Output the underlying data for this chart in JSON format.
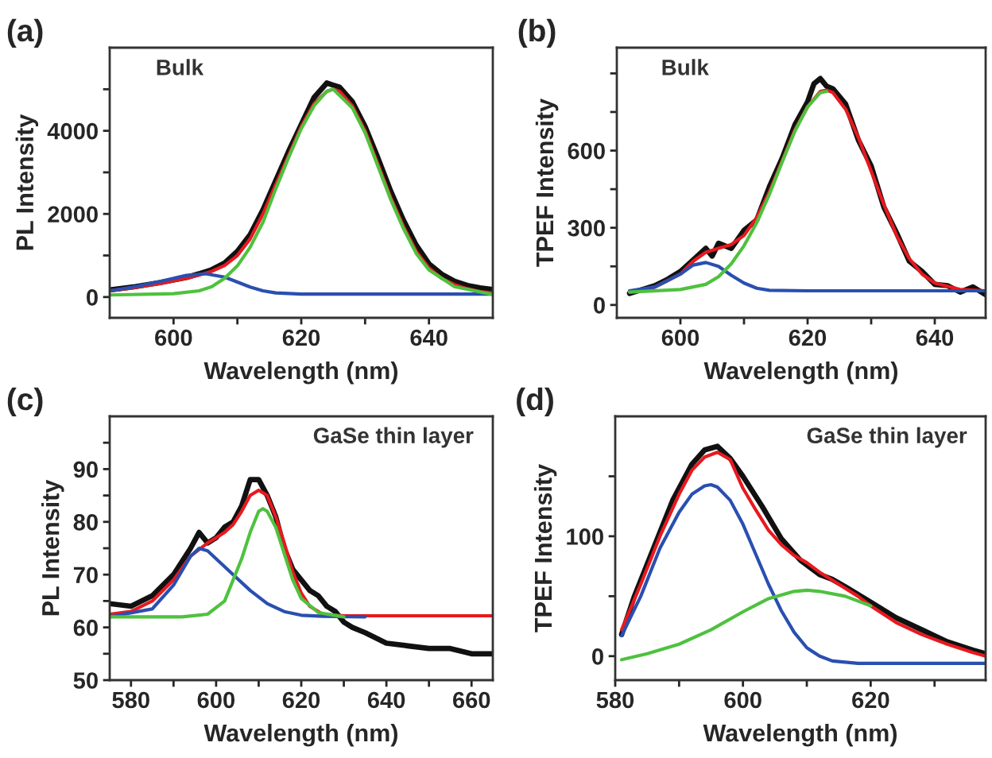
{
  "chart_data": [
    {
      "type": "line",
      "title": "(a)",
      "annotations": [
        "Bulk"
      ],
      "xlabel": "Wavelength (nm)",
      "ylabel": "PL Intensity",
      "xlim": [
        590,
        650
      ],
      "ylim": [
        -500,
        6000
      ],
      "xticks": [
        600,
        {
          "value": 610,
          "label": null
        },
        620,
        {
          "value": 630,
          "label": null
        },
        640
      ],
      "yticks": [
        0,
        {
          "value": 1000,
          "label": null
        },
        2000,
        {
          "value": 3000,
          "label": null
        },
        4000,
        {
          "value": 5000,
          "label": null
        }
      ],
      "series": [
        {
          "color": "#111111",
          "x": [
            590,
            594,
            598,
            602,
            604,
            606,
            608,
            610,
            612,
            614,
            616,
            618,
            620,
            622,
            624,
            625,
            626,
            628,
            630,
            632,
            634,
            636,
            638,
            640,
            642,
            644,
            646,
            648,
            650
          ],
          "values": [
            170,
            250,
            350,
            470,
            560,
            660,
            820,
            1100,
            1500,
            2100,
            2800,
            3500,
            4150,
            4800,
            5150,
            5100,
            5050,
            4700,
            4100,
            3350,
            2550,
            1850,
            1250,
            800,
            550,
            380,
            280,
            220,
            180
          ]
        },
        {
          "color": "#e8191f",
          "x": [
            590,
            594,
            598,
            602,
            604,
            606,
            608,
            610,
            612,
            614,
            616,
            618,
            620,
            622,
            624,
            625,
            626,
            628,
            630,
            632,
            634,
            636,
            638,
            640,
            642,
            644,
            646,
            648,
            650
          ],
          "values": [
            150,
            230,
            330,
            450,
            530,
            620,
            760,
            1000,
            1400,
            2000,
            2700,
            3400,
            4100,
            4650,
            4950,
            5000,
            4950,
            4600,
            4000,
            3200,
            2400,
            1700,
            1100,
            700,
            450,
            300,
            200,
            130,
            100
          ]
        },
        {
          "color": "#2a4fb0",
          "x": [
            590,
            594,
            598,
            602,
            605,
            608,
            610,
            612,
            614,
            616,
            620,
            650
          ],
          "values": [
            150,
            250,
            380,
            520,
            560,
            480,
            360,
            240,
            150,
            100,
            70,
            70
          ]
        },
        {
          "color": "#4fc13f",
          "x": [
            590,
            600,
            604,
            606,
            608,
            610,
            612,
            614,
            616,
            618,
            620,
            622,
            624,
            625,
            628,
            630,
            632,
            634,
            636,
            638,
            640,
            644,
            650
          ],
          "values": [
            50,
            80,
            150,
            250,
            450,
            750,
            1200,
            1800,
            2600,
            3350,
            4050,
            4600,
            4950,
            5000,
            4550,
            3950,
            3150,
            2350,
            1650,
            1050,
            650,
            250,
            60
          ]
        }
      ]
    },
    {
      "type": "line",
      "title": "(b)",
      "annotations": [
        "Bulk"
      ],
      "xlabel": "Wavelength (nm)",
      "ylabel": "TPEF Intensity",
      "xlim": [
        590,
        648
      ],
      "ylim": [
        -50,
        1000
      ],
      "xticks": [
        600,
        {
          "value": 610,
          "label": null
        },
        620,
        {
          "value": 630,
          "label": null
        },
        640
      ],
      "yticks": [
        0,
        {
          "value": 150,
          "label": null
        },
        300,
        {
          "value": 450,
          "label": null
        },
        600,
        {
          "value": 750,
          "label": null
        },
        {
          "value": 900,
          "label": null
        }
      ],
      "series": [
        {
          "color": "#111111",
          "x": [
            592,
            594,
            596,
            598,
            600,
            602,
            604,
            605,
            606,
            608,
            610,
            612,
            614,
            616,
            618,
            620,
            621,
            622,
            623,
            624,
            626,
            628,
            630,
            632,
            634,
            636,
            638,
            640,
            642,
            644,
            646,
            648
          ],
          "values": [
            45,
            60,
            75,
            100,
            130,
            175,
            220,
            190,
            240,
            220,
            290,
            330,
            460,
            570,
            700,
            790,
            860,
            880,
            850,
            840,
            780,
            640,
            540,
            380,
            280,
            170,
            130,
            80,
            75,
            50,
            70,
            40
          ]
        },
        {
          "color": "#e8191f",
          "x": [
            592,
            596,
            600,
            602,
            604,
            606,
            608,
            610,
            612,
            614,
            616,
            618,
            620,
            622,
            623,
            624,
            626,
            628,
            630,
            632,
            634,
            636,
            638,
            640,
            644,
            648
          ],
          "values": [
            50,
            70,
            120,
            170,
            205,
            220,
            235,
            270,
            340,
            440,
            560,
            680,
            770,
            830,
            835,
            825,
            760,
            650,
            520,
            390,
            270,
            180,
            120,
            85,
            60,
            55
          ]
        },
        {
          "color": "#2a4fb0",
          "x": [
            592,
            596,
            600,
            602,
            604,
            606,
            608,
            610,
            612,
            614,
            620,
            648
          ],
          "values": [
            55,
            70,
            120,
            155,
            165,
            150,
            115,
            85,
            65,
            57,
            55,
            55
          ]
        },
        {
          "color": "#4fc13f",
          "x": [
            592,
            600,
            604,
            606,
            608,
            610,
            612,
            614,
            616,
            618,
            620,
            622,
            623
          ],
          "values": [
            50,
            60,
            80,
            110,
            160,
            230,
            320,
            430,
            555,
            675,
            770,
            825,
            830
          ]
        }
      ]
    },
    {
      "type": "line",
      "title": "(c)",
      "annotations": [
        "GaSe thin layer"
      ],
      "xlabel": "Wavelength (nm)",
      "ylabel": "PL Intensity",
      "xlim": [
        575,
        665
      ],
      "ylim": [
        50,
        100
      ],
      "xticks": [
        580,
        {
          "value": 590,
          "label": null
        },
        600,
        {
          "value": 610,
          "label": null
        },
        620,
        {
          "value": 630,
          "label": null
        },
        640,
        {
          "value": 650,
          "label": null
        },
        660
      ],
      "yticks": [
        50,
        {
          "value": 55,
          "label": null
        },
        60,
        {
          "value": 65,
          "label": null
        },
        70,
        {
          "value": 75,
          "label": null
        },
        80,
        {
          "value": 85,
          "label": null
        },
        90,
        {
          "value": 95,
          "label": null
        }
      ],
      "series": [
        {
          "color": "#111111",
          "x": [
            575,
            580,
            585,
            590,
            594,
            596,
            598,
            600,
            602,
            604,
            606,
            608,
            610,
            612,
            614,
            616,
            618,
            620,
            622,
            624,
            626,
            628,
            630,
            632,
            635,
            640,
            645,
            650,
            655,
            660,
            665
          ],
          "values": [
            64.5,
            64,
            66,
            70,
            75,
            78,
            76,
            77,
            79,
            80,
            83,
            88,
            88,
            85,
            81,
            75,
            71,
            69,
            67,
            66,
            64,
            63,
            61,
            60,
            59,
            57,
            56.5,
            56,
            56,
            55,
            55
          ]
        },
        {
          "color": "#e8191f",
          "x": [
            575,
            580,
            585,
            590,
            594,
            598,
            600,
            602,
            604,
            606,
            608,
            610,
            612,
            614,
            616,
            618,
            620,
            622,
            625,
            630,
            665
          ],
          "values": [
            62.5,
            63,
            65,
            69,
            73.5,
            76,
            77,
            78,
            79.5,
            82,
            85,
            86,
            85,
            81,
            76,
            70.5,
            66.5,
            64,
            62.5,
            62.2,
            62.2
          ]
        },
        {
          "color": "#2a4fb0",
          "x": [
            575,
            585,
            590,
            594,
            596,
            598,
            600,
            604,
            608,
            612,
            616,
            620,
            625,
            635
          ],
          "values": [
            62,
            63.5,
            68,
            73.5,
            75,
            74.5,
            73,
            70,
            67,
            64.5,
            63,
            62.3,
            62.1,
            62
          ]
        },
        {
          "color": "#4fc13f",
          "x": [
            575,
            592,
            598,
            602,
            606,
            608,
            610,
            611,
            612,
            614,
            616,
            618,
            620,
            624,
            630
          ],
          "values": [
            62,
            62,
            62.5,
            65,
            73,
            78,
            82,
            82.5,
            82,
            79,
            74,
            69,
            65.5,
            62.8,
            62
          ]
        }
      ]
    },
    {
      "type": "line",
      "title": "(d)",
      "annotations": [
        "GaSe thin layer"
      ],
      "xlabel": "Wavelength (nm)",
      "ylabel": "TPEF Intensity",
      "xlim": [
        580,
        638
      ],
      "ylim": [
        -20,
        200
      ],
      "xticks": [
        580,
        {
          "value": 590,
          "label": null
        },
        600,
        {
          "value": 610,
          "label": null
        },
        620,
        {
          "value": 630,
          "label": null
        }
      ],
      "yticks": [
        0,
        {
          "value": 50,
          "label": null
        },
        100,
        {
          "value": 150,
          "label": null
        }
      ],
      "series": [
        {
          "color": "#111111",
          "x": [
            581,
            583,
            586,
            589,
            592,
            594,
            596,
            598,
            600,
            603,
            606,
            609,
            612,
            614,
            616,
            620,
            624,
            628,
            632,
            636,
            638
          ],
          "values": [
            18,
            50,
            90,
            130,
            160,
            172,
            175,
            165,
            150,
            125,
            98,
            80,
            68,
            64,
            58,
            45,
            32,
            22,
            12,
            5,
            2
          ]
        },
        {
          "color": "#e8191f",
          "x": [
            581,
            584,
            587,
            590,
            592,
            594,
            596,
            598,
            600,
            602,
            604,
            606,
            608,
            610,
            612,
            615,
            618,
            620,
            624,
            628,
            632,
            636,
            638
          ],
          "values": [
            22,
            60,
            100,
            135,
            155,
            166,
            170,
            164,
            140,
            122,
            105,
            93,
            84,
            78,
            70,
            60,
            50,
            42,
            28,
            18,
            10,
            3,
            0
          ]
        },
        {
          "color": "#2a4fb0",
          "x": [
            581,
            584,
            587,
            590,
            592,
            594,
            595,
            596,
            598,
            600,
            602,
            604,
            606,
            608,
            610,
            612,
            614,
            618,
            638
          ],
          "values": [
            17,
            50,
            90,
            120,
            135,
            142,
            143,
            141,
            130,
            110,
            85,
            60,
            38,
            20,
            7,
            0,
            -4,
            -6,
            -6
          ]
        },
        {
          "color": "#4fc13f",
          "x": [
            581,
            585,
            590,
            595,
            600,
            604,
            608,
            610,
            612,
            616,
            620
          ],
          "values": [
            -3,
            2,
            10,
            22,
            37,
            48,
            54,
            55,
            54,
            50,
            42
          ]
        }
      ]
    }
  ]
}
